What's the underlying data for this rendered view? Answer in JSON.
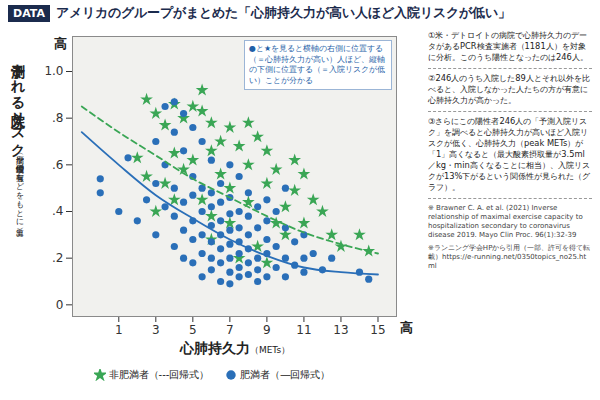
{
  "chart_data": {
    "type": "scatter",
    "badge": "DATA",
    "title": "アメリカのグループがまとめた「心肺持久力が高い人ほど入院リスクが低い」",
    "y_label": "予測される入院リスク",
    "y_label_note": "（病歴や喫煙習慣の有無などをもとに算出）",
    "x_label": "心肺持久力",
    "x_label_unit": "（METs）",
    "x_high_label": "高",
    "y_high_label": "高",
    "annotation": "●と★を見ると横軸の右側に位置する（＝心肺持久力が高い）人ほど、縦軸の下側に位置する（＝入院リスクが低い）ことが分かる",
    "notes": [
      "①米・デトロイトの病院で心肺持久力のデータがあるPCR検査実施者（1181人）を対象に分析。このうち陽性となったのは246人。",
      "②246人のうち入院した89人とそれ以外を比べると、入院しなかった人たちの方が有意に心肺持久力が高かった。",
      "③さらにこの陽性者246人の「予測入院リスク」を調べると心肺持久力が高いほど入院リスクが低く、心肺持久力（peak METs）が「1」高くなると（最大酸素摂取量が3.5ml／kg・min高くなることに相当）、入院リスクが13%下がるという関係性が見られた（グラフ）。"
    ],
    "citation": "※ Brawner C. A. et al. (2021) Inverse relationship of maximal exercise capacity to hospitalization secondary to coronavirus disease 2019. Mayo Clin Proc. 96(1):32-39",
    "source": "※ランニング学会HPから引用（一部、許可を得て転載）https://e-running.net/0350topics_no25.html",
    "xlim": [
      -1.5,
      16
    ],
    "xticks": [
      1,
      3,
      5,
      7,
      9,
      11,
      13,
      15
    ],
    "ylim": [
      -0.05,
      1.15
    ],
    "yticks": [
      0,
      {
        "value": 0.2,
        "label": ".2"
      },
      {
        "value": 0.4,
        "label": ".4"
      },
      {
        "value": 0.6,
        "label": ".6"
      },
      {
        "value": 0.8,
        "label": ".8"
      },
      {
        "value": 1.0,
        "label": "1.0"
      }
    ],
    "grid": false,
    "legend": "bottom",
    "series": [
      {
        "name": "非肥満者（---回帰式）",
        "color": "#3aa655",
        "marker": "star",
        "x": [
          2.5,
          3,
          3.5,
          4,
          4.5,
          5,
          5.5,
          6,
          4,
          2,
          2.5,
          3.5,
          4.5,
          5,
          6,
          6.5,
          7,
          7.5,
          8,
          8.5,
          9,
          6.5,
          7,
          5.5,
          4,
          3,
          6,
          7,
          8,
          9,
          9.5,
          10,
          10.5,
          11,
          11.5,
          11,
          12,
          10,
          8.5,
          7.5,
          9,
          6,
          12.5,
          13,
          14,
          14.5,
          9.5,
          10.5,
          8,
          5.5
        ],
        "values": [
          0.88,
          0.82,
          0.77,
          0.86,
          0.8,
          0.85,
          0.83,
          0.78,
          0.65,
          0.63,
          0.55,
          0.52,
          0.58,
          0.62,
          0.66,
          0.7,
          0.76,
          0.68,
          0.6,
          0.72,
          0.66,
          0.56,
          0.5,
          0.45,
          0.45,
          0.4,
          0.38,
          0.35,
          0.44,
          0.52,
          0.58,
          0.42,
          0.49,
          0.56,
          0.45,
          0.35,
          0.4,
          0.3,
          0.25,
          0.2,
          0.18,
          0.28,
          0.3,
          0.25,
          0.3,
          0.23,
          0.35,
          0.62,
          0.78,
          0.92
        ],
        "fit": {
          "line_style": "dashed",
          "x": [
            -1,
            1,
            3,
            5,
            7,
            9,
            11,
            13,
            15
          ],
          "values": [
            0.85,
            0.74,
            0.64,
            0.54,
            0.46,
            0.38,
            0.31,
            0.26,
            0.22
          ]
        }
      },
      {
        "name": "肥満者（―回帰式）",
        "color": "#2a6fb8",
        "marker": "circle",
        "x": [
          0,
          0,
          1,
          1.5,
          2,
          2.5,
          3,
          3,
          3,
          3.5,
          3.5,
          3.5,
          4,
          4,
          4,
          4,
          4,
          4.5,
          4.5,
          4.5,
          4.5,
          4.5,
          5,
          5,
          5,
          5,
          5,
          5,
          5.5,
          5.5,
          5.5,
          5.5,
          5.5,
          5.5,
          6,
          6,
          6,
          6,
          6,
          6,
          6,
          6.5,
          6.5,
          6.5,
          6.5,
          6.5,
          6.5,
          6.5,
          7,
          7,
          7,
          7,
          7,
          7,
          7,
          7,
          7.5,
          7.5,
          7.5,
          7.5,
          7.5,
          7.5,
          7.5,
          8,
          8,
          8,
          8,
          8,
          8,
          8.5,
          8.5,
          8.5,
          8.5,
          8.5,
          9,
          9,
          9,
          9,
          9,
          9.5,
          9.5,
          9.5,
          10,
          10,
          10,
          10,
          10.5,
          10.5,
          11,
          11,
          11,
          11.5,
          12,
          12.5,
          14,
          14.5
        ],
        "values": [
          0.54,
          0.48,
          0.4,
          0.63,
          0.36,
          0.45,
          0.7,
          0.52,
          0.3,
          0.85,
          0.6,
          0.42,
          0.87,
          0.74,
          0.5,
          0.38,
          0.25,
          0.82,
          0.66,
          0.44,
          0.32,
          0.2,
          0.76,
          0.55,
          0.47,
          0.36,
          0.28,
          0.18,
          0.7,
          0.5,
          0.4,
          0.3,
          0.22,
          0.12,
          0.62,
          0.48,
          0.42,
          0.34,
          0.27,
          0.2,
          0.15,
          0.52,
          0.44,
          0.36,
          0.3,
          0.24,
          0.18,
          0.1,
          0.6,
          0.46,
          0.39,
          0.32,
          0.26,
          0.2,
          0.14,
          0.09,
          0.55,
          0.4,
          0.33,
          0.27,
          0.22,
          0.16,
          0.12,
          0.48,
          0.38,
          0.3,
          0.24,
          0.18,
          0.13,
          0.42,
          0.33,
          0.2,
          0.15,
          0.1,
          0.45,
          0.36,
          0.28,
          0.22,
          0.12,
          0.4,
          0.25,
          0.16,
          0.5,
          0.33,
          0.2,
          0.12,
          0.27,
          0.17,
          0.3,
          0.2,
          0.14,
          0.22,
          0.15,
          0.2,
          0.14,
          0.11
        ],
        "fit": {
          "line_style": "solid",
          "x": [
            -1,
            1,
            3,
            5,
            7,
            9,
            11,
            13,
            15
          ],
          "values": [
            0.74,
            0.6,
            0.47,
            0.37,
            0.28,
            0.21,
            0.16,
            0.14,
            0.13
          ]
        }
      }
    ]
  }
}
